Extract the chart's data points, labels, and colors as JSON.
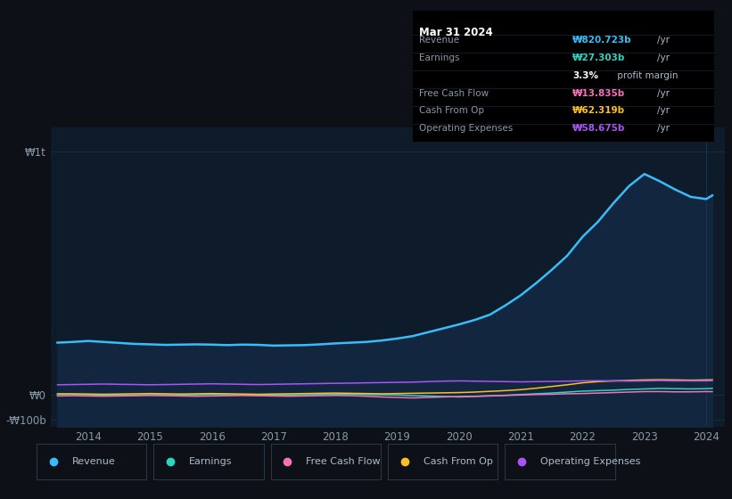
{
  "background_color": "#0d1117",
  "plot_bg_color": "#0d1b2a",
  "title_box": {
    "date": "Mar 31 2024",
    "rows": [
      {
        "label": "Revenue",
        "value": "₩820.723b",
        "unit": "/yr",
        "color": "#38bdf8"
      },
      {
        "label": "Earnings",
        "value": "₩27.303b",
        "unit": "/yr",
        "color": "#2dd4bf"
      },
      {
        "label": "",
        "value": "3.3%",
        "unit": " profit margin",
        "color": "#ffffff"
      },
      {
        "label": "Free Cash Flow",
        "value": "₩13.835b",
        "unit": "/yr",
        "color": "#f472b6"
      },
      {
        "label": "Cash From Op",
        "value": "₩62.319b",
        "unit": "/yr",
        "color": "#fbbf24"
      },
      {
        "label": "Operating Expenses",
        "value": "₩58.675b",
        "unit": "/yr",
        "color": "#a855f7"
      }
    ]
  },
  "years": [
    2013.5,
    2013.75,
    2014.0,
    2014.25,
    2014.5,
    2014.75,
    2015.0,
    2015.25,
    2015.5,
    2015.75,
    2016.0,
    2016.25,
    2016.5,
    2016.75,
    2017.0,
    2017.25,
    2017.5,
    2017.75,
    2018.0,
    2018.25,
    2018.5,
    2018.75,
    2019.0,
    2019.25,
    2019.5,
    2019.75,
    2020.0,
    2020.25,
    2020.5,
    2020.75,
    2021.0,
    2021.25,
    2021.5,
    2021.75,
    2022.0,
    2022.25,
    2022.5,
    2022.75,
    2023.0,
    2023.25,
    2023.5,
    2023.75,
    2024.0,
    2024.1
  ],
  "revenue": [
    215,
    218,
    222,
    218,
    214,
    210,
    208,
    206,
    207,
    208,
    207,
    205,
    207,
    206,
    203,
    204,
    205,
    208,
    212,
    215,
    218,
    224,
    232,
    242,
    258,
    274,
    290,
    308,
    330,
    368,
    410,
    460,
    514,
    572,
    650,
    712,
    788,
    858,
    908,
    878,
    844,
    814,
    805,
    820
  ],
  "earnings": [
    2,
    2,
    1,
    -1,
    -1,
    0,
    1,
    1,
    0,
    1,
    2,
    1,
    0,
    -1,
    0,
    0,
    1,
    2,
    3,
    3,
    2,
    1,
    0,
    -2,
    -4,
    -6,
    -8,
    -6,
    -4,
    -1,
    2,
    5,
    8,
    12,
    16,
    18,
    20,
    23,
    25,
    27,
    26,
    25,
    26,
    27.3
  ],
  "free_cash_flow": [
    -4,
    -3,
    -4,
    -5,
    -4,
    -3,
    -2,
    -3,
    -4,
    -5,
    -4,
    -3,
    -2,
    -3,
    -4,
    -5,
    -4,
    -3,
    -2,
    -3,
    -5,
    -8,
    -10,
    -12,
    -10,
    -8,
    -6,
    -5,
    -3,
    -2,
    0,
    2,
    3,
    5,
    6,
    8,
    10,
    12,
    14,
    14,
    13,
    13,
    14,
    13.8
  ],
  "cash_from_op": [
    5,
    5,
    4,
    3,
    4,
    5,
    6,
    5,
    4,
    5,
    6,
    5,
    4,
    3,
    4,
    5,
    6,
    7,
    8,
    7,
    6,
    5,
    6,
    7,
    8,
    9,
    10,
    12,
    15,
    18,
    22,
    28,
    35,
    42,
    50,
    55,
    58,
    60,
    62,
    63,
    62,
    61,
    62,
    62.3
  ],
  "operating_expenses": [
    42,
    43,
    44,
    45,
    44,
    43,
    42,
    43,
    44,
    45,
    46,
    45,
    44,
    43,
    44,
    45,
    46,
    47,
    48,
    49,
    50,
    51,
    52,
    53,
    55,
    57,
    58,
    57,
    56,
    55,
    54,
    55,
    56,
    57,
    58,
    59,
    58,
    57,
    58,
    59,
    58,
    58,
    58,
    58.7
  ],
  "ylabel_1t": "₩1t",
  "ylabel_0": "₩0",
  "ylabel_neg100b": "-₩100b",
  "xticks": [
    2014,
    2015,
    2016,
    2017,
    2018,
    2019,
    2020,
    2021,
    2022,
    2023,
    2024
  ],
  "ylim": [
    -130,
    1100
  ],
  "ytick_positions": [
    1000,
    0,
    -100
  ],
  "legend": [
    {
      "label": "Revenue",
      "color": "#38bdf8"
    },
    {
      "label": "Earnings",
      "color": "#2dd4bf"
    },
    {
      "label": "Free Cash Flow",
      "color": "#f472b6"
    },
    {
      "label": "Cash From Op",
      "color": "#fbbf24"
    },
    {
      "label": "Operating Expenses",
      "color": "#a855f7"
    }
  ],
  "line_colors": {
    "revenue": "#38bdf8",
    "earnings": "#2dd4bf",
    "free_cash_flow": "#f472b6",
    "cash_from_op": "#fbbf24",
    "operating_expenses": "#a855f7"
  },
  "fill_color": "#132640",
  "grid_color": "#1e2d3d",
  "text_color": "#8899aa",
  "text_color_light": "#aabbcc",
  "box_bg": "#000000",
  "box_border": "#222233"
}
